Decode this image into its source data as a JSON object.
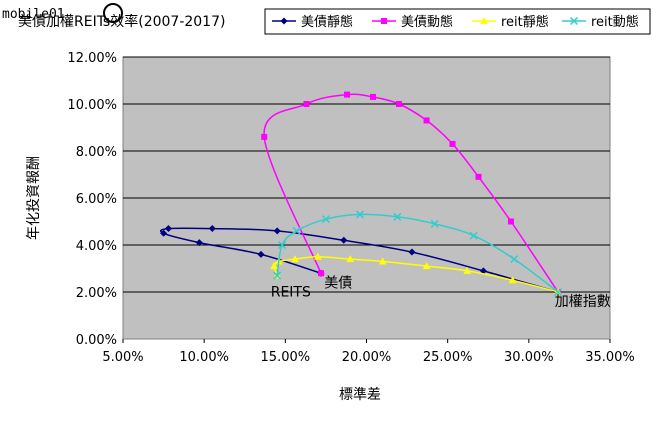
{
  "watermark": "mobile01",
  "chart_data": {
    "type": "line",
    "title": "美債加權REITs效率(2007-2017)",
    "xlabel": "標準差",
    "ylabel": "年化投資報酬",
    "xlim": [
      0.05,
      0.35
    ],
    "ylim": [
      0.0,
      0.12
    ],
    "xticks": [
      0.05,
      0.1,
      0.15,
      0.2,
      0.25,
      0.3,
      0.35
    ],
    "xtick_labels": [
      "5.00%",
      "10.00%",
      "15.00%",
      "20.00%",
      "25.00%",
      "30.00%",
      "35.00%"
    ],
    "yticks": [
      0.0,
      0.02,
      0.04,
      0.06,
      0.08,
      0.1,
      0.12
    ],
    "ytick_labels": [
      "0.00%",
      "2.00%",
      "4.00%",
      "6.00%",
      "8.00%",
      "10.00%",
      "12.00%"
    ],
    "grid": "horizontal",
    "legend": "top-right",
    "series": [
      {
        "name": "美債靜態",
        "color": "#000080",
        "marker": "diamond",
        "points": [
          [
            0.172,
            0.028
          ],
          [
            0.135,
            0.036
          ],
          [
            0.097,
            0.041
          ],
          [
            0.075,
            0.045
          ],
          [
            0.078,
            0.047
          ],
          [
            0.105,
            0.047
          ],
          [
            0.145,
            0.046
          ],
          [
            0.186,
            0.042
          ],
          [
            0.228,
            0.037
          ],
          [
            0.272,
            0.029
          ],
          [
            0.318,
            0.02
          ]
        ]
      },
      {
        "name": "美債動態",
        "color": "#ff00ff",
        "marker": "square",
        "points": [
          [
            0.172,
            0.028
          ],
          [
            0.137,
            0.086
          ],
          [
            0.163,
            0.1
          ],
          [
            0.188,
            0.104
          ],
          [
            0.204,
            0.103
          ],
          [
            0.22,
            0.1
          ],
          [
            0.237,
            0.093
          ],
          [
            0.253,
            0.083
          ],
          [
            0.269,
            0.069
          ],
          [
            0.289,
            0.05
          ],
          [
            0.318,
            0.02
          ]
        ]
      },
      {
        "name": "reit靜態",
        "color": "#ffff00",
        "marker": "triangle",
        "points": [
          [
            0.145,
            0.027
          ],
          [
            0.143,
            0.031
          ],
          [
            0.146,
            0.033
          ],
          [
            0.156,
            0.034
          ],
          [
            0.17,
            0.035
          ],
          [
            0.19,
            0.034
          ],
          [
            0.21,
            0.033
          ],
          [
            0.237,
            0.031
          ],
          [
            0.262,
            0.029
          ],
          [
            0.29,
            0.025
          ],
          [
            0.318,
            0.02
          ]
        ]
      },
      {
        "name": "reit動態",
        "color": "#33cccc",
        "marker": "x",
        "points": [
          [
            0.145,
            0.027
          ],
          [
            0.148,
            0.04
          ],
          [
            0.157,
            0.046
          ],
          [
            0.175,
            0.051
          ],
          [
            0.196,
            0.053
          ],
          [
            0.219,
            0.052
          ],
          [
            0.242,
            0.049
          ],
          [
            0.266,
            0.044
          ],
          [
            0.291,
            0.034
          ],
          [
            0.318,
            0.02
          ]
        ]
      }
    ],
    "annotations": [
      {
        "text": "REITS",
        "x": 0.141,
        "y": 0.018
      },
      {
        "text": "美債",
        "x": 0.174,
        "y": 0.022
      },
      {
        "text": "加權指數",
        "x": 0.316,
        "y": 0.014
      }
    ]
  }
}
